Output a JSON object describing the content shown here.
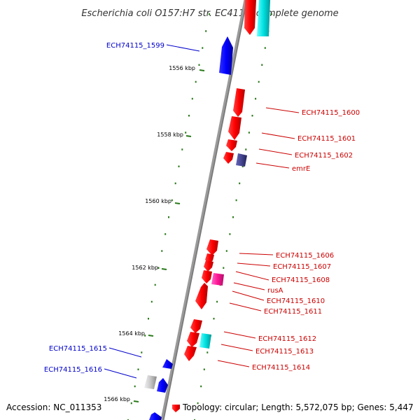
{
  "title": "Escherichia coli O157:H7 str. EC4115, complete genome",
  "ticks": [
    "1556 kbp",
    "1558 kbp",
    "1560 kbp",
    "1562 kbp",
    "1564 kbp",
    "1566 kbp"
  ],
  "genes_left": [
    "ECH74115_1599",
    "ECH74115_1615",
    "ECH74115_1616"
  ],
  "genes_right": [
    "ECH74115_1600",
    "ECH74115_1601",
    "ECH74115_1602",
    "emrE",
    "ECH74115_1606",
    "ECH74115_1607",
    "ECH74115_1608",
    "rusA",
    "ECH74115_1610",
    "ECH74115_1611",
    "ECH74115_1612",
    "ECH74115_1613",
    "ECH74115_1614"
  ],
  "footer": {
    "accession": "Accession: NC_011353",
    "topology": "Topology: circular; Length: 5,572,075 bp; Genes: 5,447"
  },
  "colors": {
    "minus_strand": "#0000cc",
    "plus_strand": "#cc0000",
    "label_left": "#0000cc",
    "label_right": "#cc0000",
    "backbone": "#888888",
    "ticks": "#2a7a1a"
  }
}
